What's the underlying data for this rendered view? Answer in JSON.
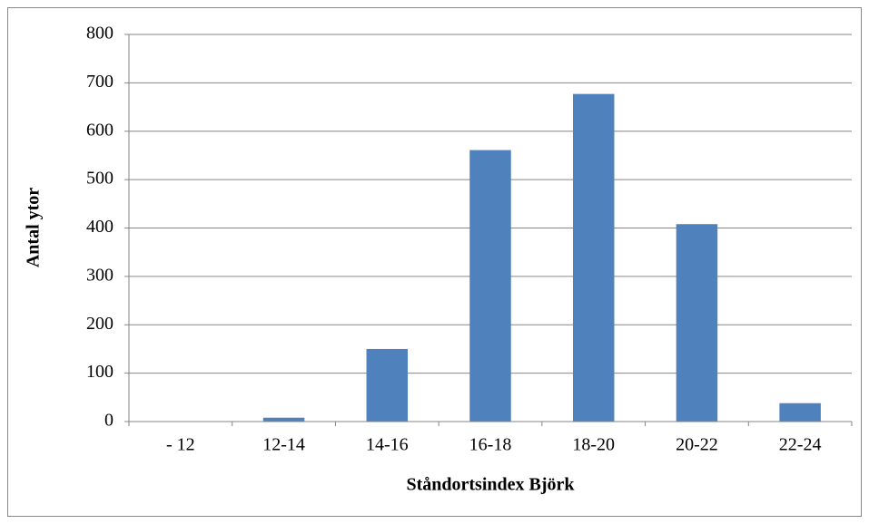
{
  "chart_data": {
    "type": "bar",
    "x_label": "Ståndortsindex Björk",
    "y_label": "Antal ytor",
    "categories": [
      "- 12",
      "12-14",
      "14-16",
      "16-18",
      "18-20",
      "20-22",
      "22-24"
    ],
    "values": [
      0,
      8,
      150,
      561,
      677,
      408,
      38
    ],
    "color": "#4f81bd",
    "ylim": [
      0,
      800
    ],
    "yticks": [
      0,
      100,
      200,
      300,
      400,
      500,
      600,
      700,
      800
    ],
    "grid": true
  }
}
